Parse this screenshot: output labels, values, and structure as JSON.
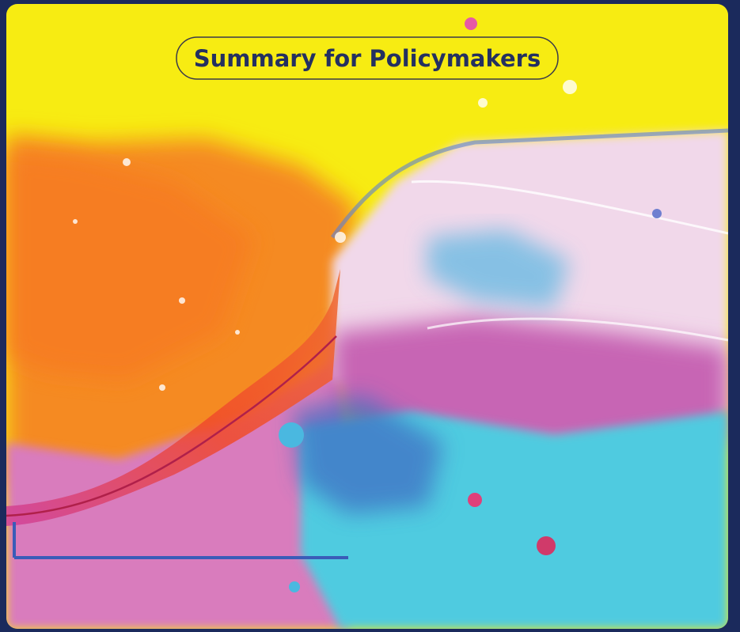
{
  "title": "Summary for Policymakers"
}
